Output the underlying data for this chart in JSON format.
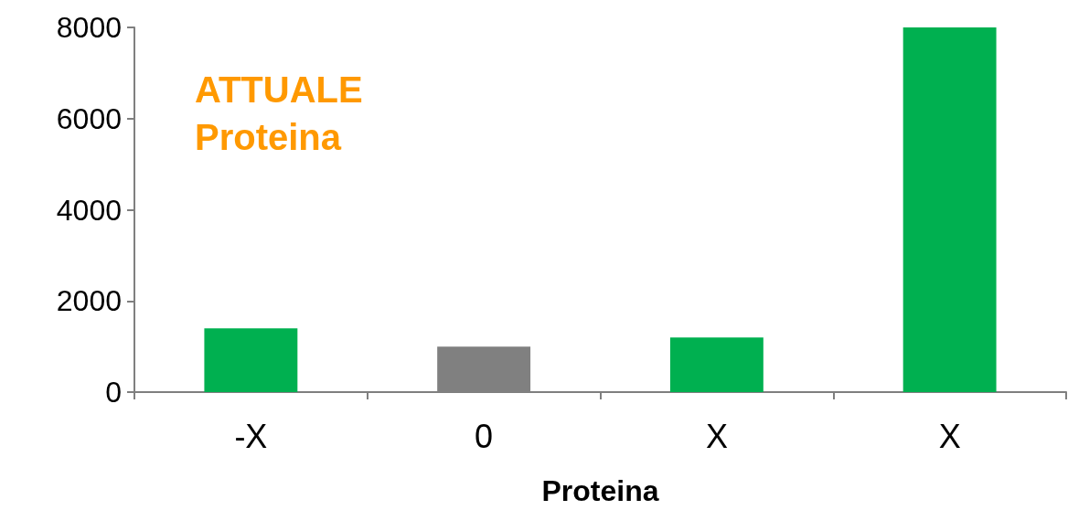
{
  "chart_data": {
    "type": "bar",
    "xlabel": "Proteina",
    "categories": [
      "-X",
      "0",
      "X",
      "X"
    ],
    "values": [
      1400,
      1000,
      1200,
      8000
    ],
    "colors": [
      "#00b050",
      "#808080",
      "#00b050",
      "#00b050"
    ],
    "ylim": [
      0,
      8000
    ],
    "yticks": [
      0,
      2000,
      4000,
      6000,
      8000
    ],
    "grid": false,
    "annotations": [
      "ATTUALE\nProteina"
    ]
  }
}
